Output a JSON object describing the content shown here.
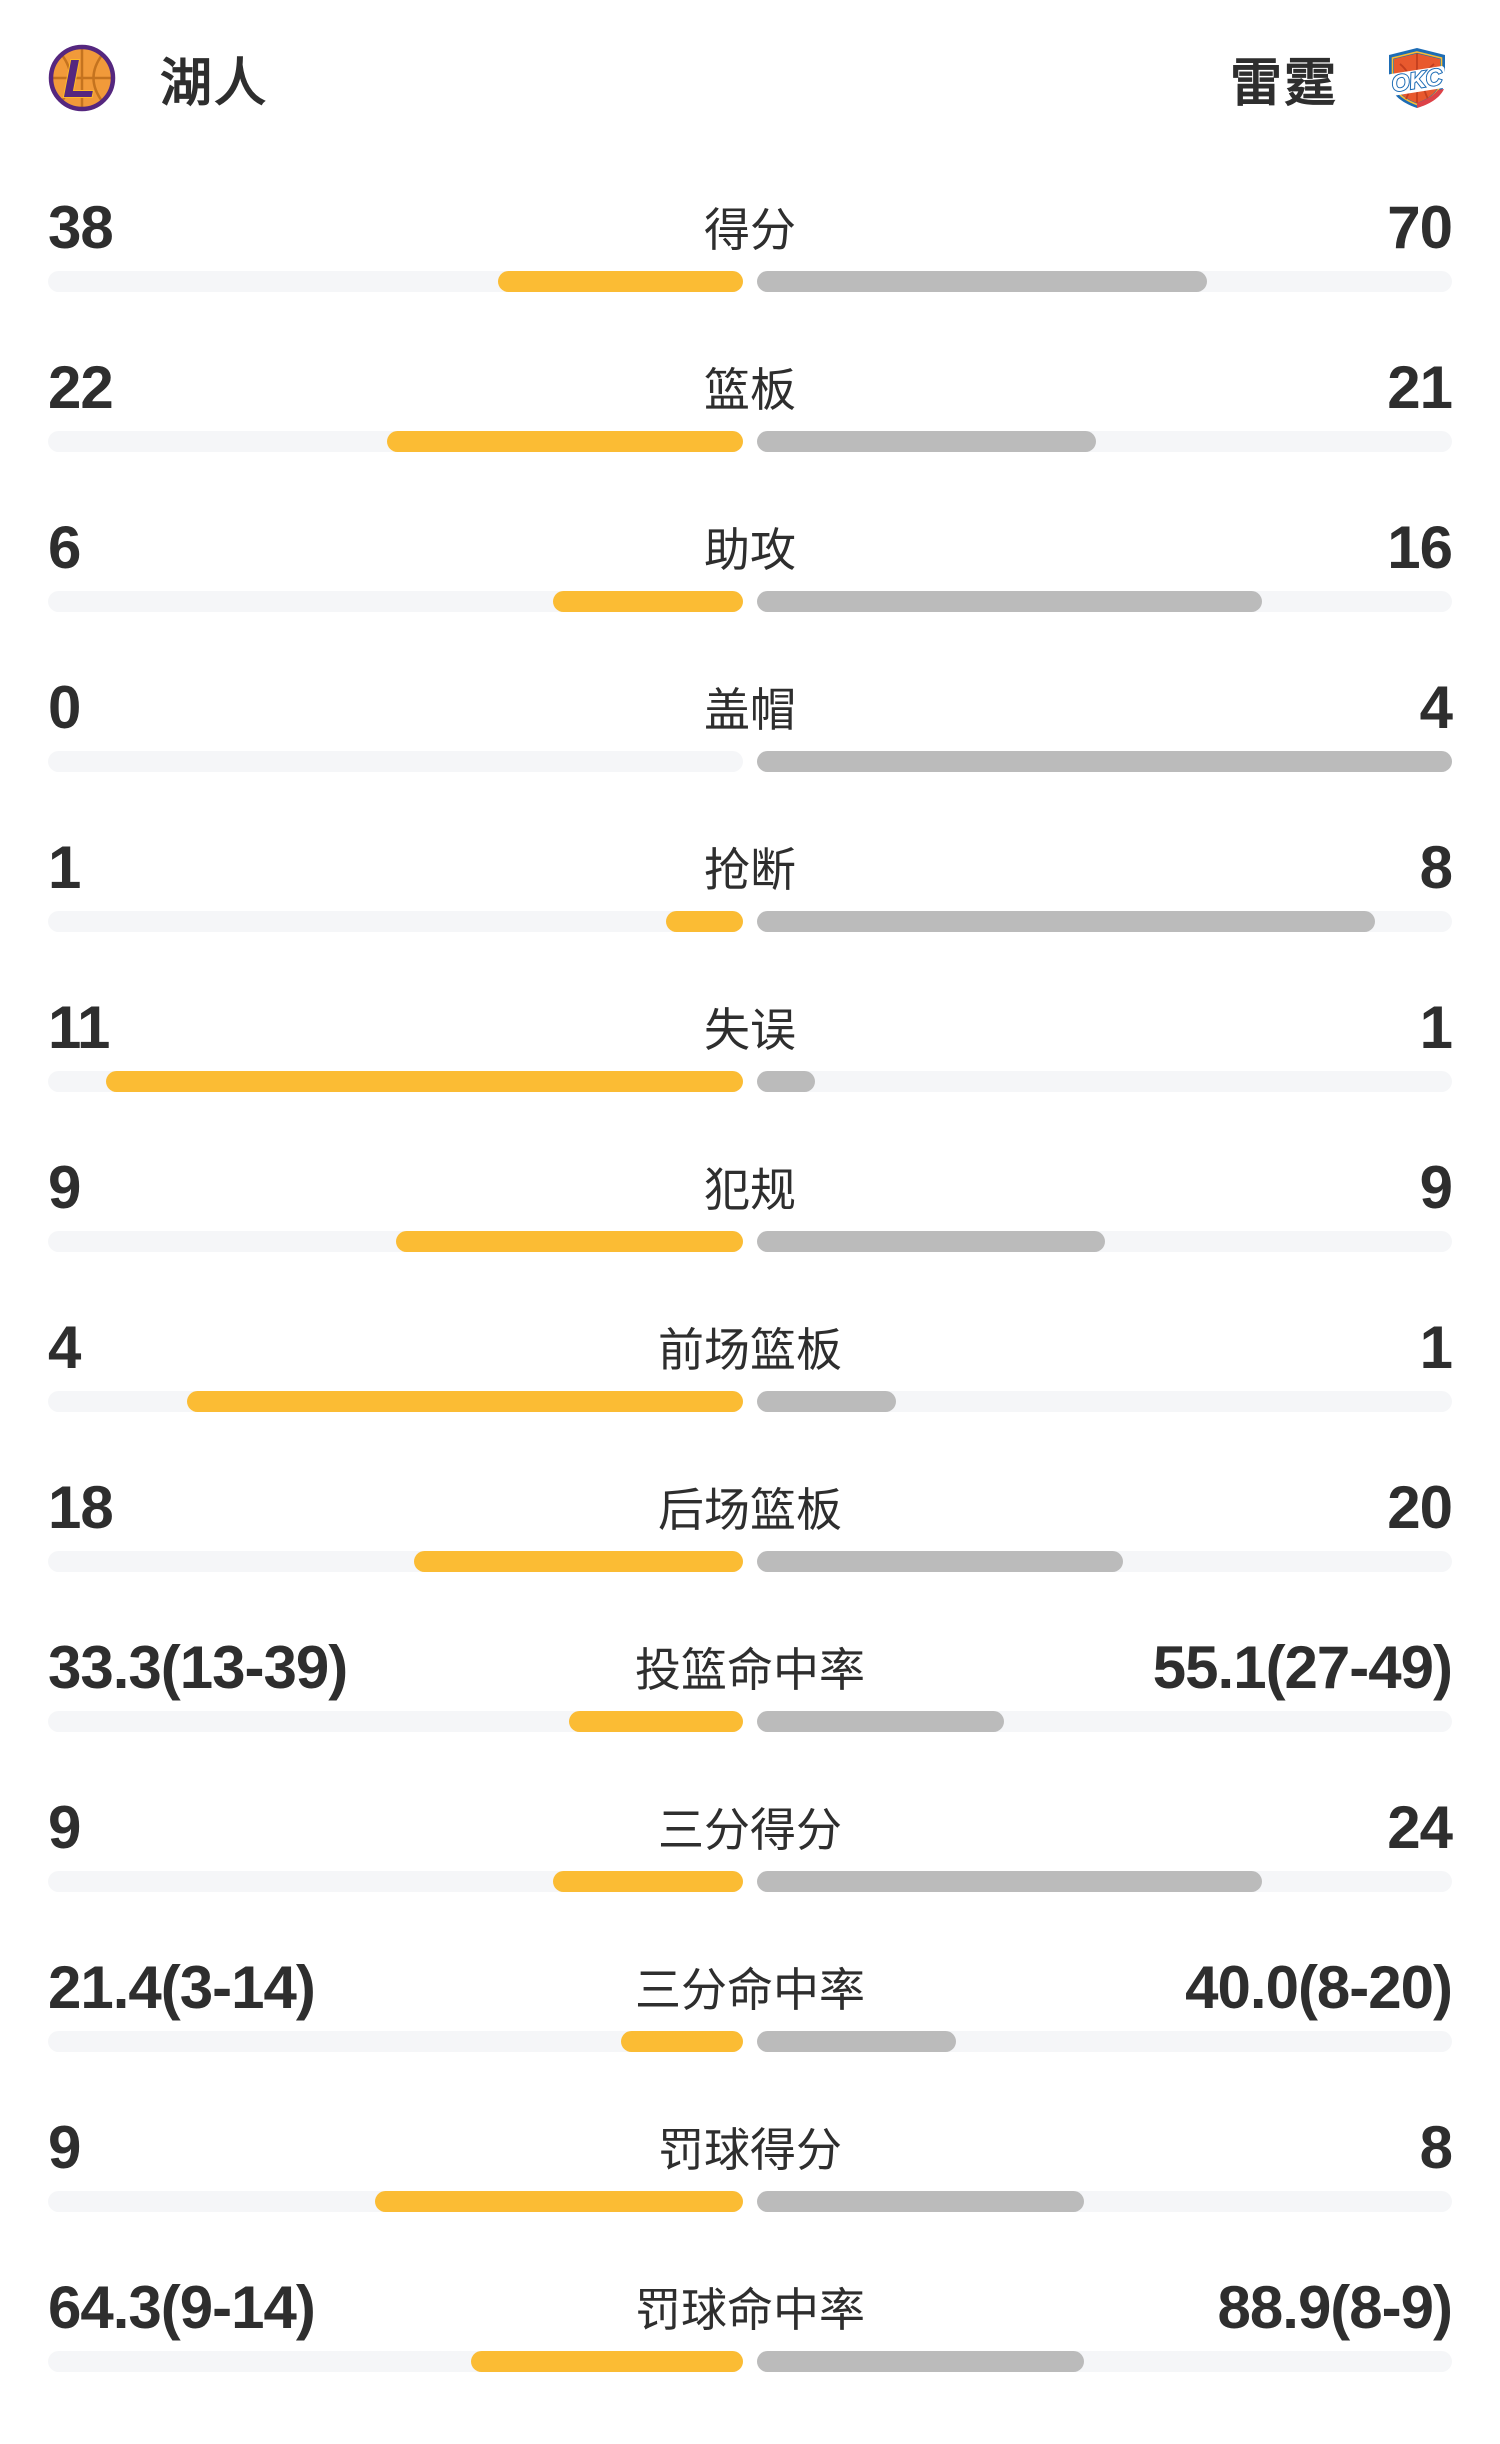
{
  "header": {
    "left_team": {
      "name": "湖人",
      "logo_icon": "lakers-basketball-logo"
    },
    "right_team": {
      "name": "雷霆",
      "logo_icon": "okc-shield-logo"
    }
  },
  "colors": {
    "left_bar": "#FBBC34",
    "right_bar": "#BBBBBB",
    "bar_track": "#F5F6F8",
    "text": "#2E2E2E",
    "lakers_purple": "#55277F",
    "lakers_gold": "#FDB927",
    "lakers_orange": "#F19A3A",
    "okc_blue": "#1D6CB5",
    "okc_orange": "#E8592E",
    "okc_red": "#DD4247",
    "okc_yellow": "#FDBB30"
  },
  "chart_data": {
    "type": "bar",
    "layout": {
      "orientation": "horizontal-diverging-from-center",
      "left_series_color": "#FBBC34",
      "right_series_color": "#BBBBBB",
      "bar_pct_note": "bar_pct values are bar length as percent of each half-track width, measured from the screenshot"
    },
    "categories": [
      "得分",
      "篮板",
      "助攻",
      "盖帽",
      "抢断",
      "失误",
      "犯规",
      "前场篮板",
      "后场篮板",
      "投篮命中率",
      "三分得分",
      "三分命中率",
      "罚球得分",
      "罚球命中率"
    ],
    "series": [
      {
        "name": "湖人",
        "values": [
          38,
          22,
          6,
          0,
          1,
          11,
          9,
          4,
          18,
          33.3,
          9,
          21.4,
          9,
          64.3
        ]
      },
      {
        "name": "雷霆",
        "values": [
          70,
          21,
          16,
          4,
          8,
          1,
          9,
          1,
          20,
          55.1,
          24,
          40.0,
          8,
          88.9
        ]
      }
    ],
    "stats": [
      {
        "label": "得分",
        "left": "38",
        "right": "70",
        "left_bar_pct": 35.2,
        "right_bar_pct": 64.8
      },
      {
        "label": "篮板",
        "left": "22",
        "right": "21",
        "left_bar_pct": 51.2,
        "right_bar_pct": 48.8
      },
      {
        "label": "助攻",
        "left": "6",
        "right": "16",
        "left_bar_pct": 27.3,
        "right_bar_pct": 72.7
      },
      {
        "label": "盖帽",
        "left": "0",
        "right": "4",
        "left_bar_pct": 0,
        "right_bar_pct": 100
      },
      {
        "label": "抢断",
        "left": "1",
        "right": "8",
        "left_bar_pct": 11.1,
        "right_bar_pct": 88.9
      },
      {
        "label": "失误",
        "left": "11",
        "right": "1",
        "left_bar_pct": 91.7,
        "right_bar_pct": 8.3
      },
      {
        "label": "犯规",
        "left": "9",
        "right": "9",
        "left_bar_pct": 50,
        "right_bar_pct": 50
      },
      {
        "label": "前场篮板",
        "left": "4",
        "right": "1",
        "left_bar_pct": 80,
        "right_bar_pct": 20
      },
      {
        "label": "后场篮板",
        "left": "18",
        "right": "20",
        "left_bar_pct": 47.4,
        "right_bar_pct": 52.6
      },
      {
        "label": "投篮命中率",
        "left": "33.3(13-39)",
        "right": "55.1(27-49)",
        "left_bar_pct": 25.0,
        "right_bar_pct": 35.5
      },
      {
        "label": "三分得分",
        "left": "9",
        "right": "24",
        "left_bar_pct": 27.3,
        "right_bar_pct": 72.7
      },
      {
        "label": "三分命中率",
        "left": "21.4(3-14)",
        "right": "40.0(8-20)",
        "left_bar_pct": 17.6,
        "right_bar_pct": 28.6
      },
      {
        "label": "罚球得分",
        "left": "9",
        "right": "8",
        "left_bar_pct": 52.9,
        "right_bar_pct": 47.1
      },
      {
        "label": "罚球命中率",
        "left": "64.3(9-14)",
        "right": "88.9(8-9)",
        "left_bar_pct": 39.1,
        "right_bar_pct": 47.0
      }
    ]
  }
}
